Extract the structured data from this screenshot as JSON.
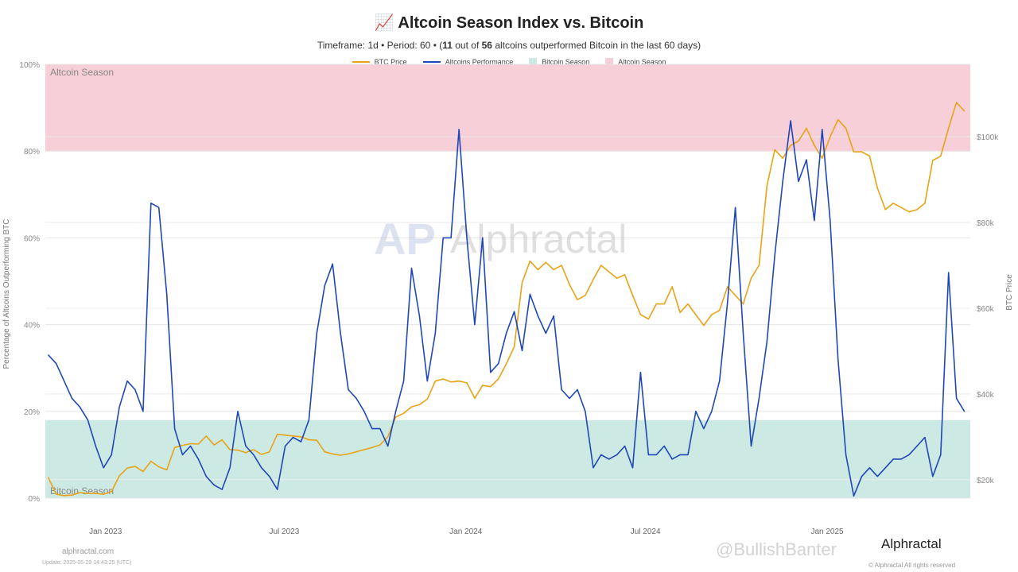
{
  "header": {
    "icon": "chart-increasing-icon",
    "icon_glyph": "📈",
    "title": "Altcoin Season Index vs. Bitcoin",
    "subtitle_prefix": "Timeframe: 1d  •  Period: 60  •  (",
    "count_outperformed": "11",
    "out_of": " out of ",
    "total": "56",
    "subtitle_suffix": " altcoins outperformed Bitcoin in the last 60 days)"
  },
  "footer": {
    "site": "alphractal.com",
    "update": "Update: 2025-05-29 14:43:25 (UTC)",
    "brand": "Alphractal",
    "copyright": "© Alphractal All rights reserved",
    "watermark_overlay": "@BullishBanter",
    "chart_watermark": "Alphractal"
  },
  "chart_data": {
    "type": "line",
    "title": "Altcoin Season Index vs. Bitcoin",
    "ylabel": "Percentage of Altcoins Outperforming BTC",
    "y2label": "BTC Price",
    "ylim": [
      0,
      100
    ],
    "y2lim": [
      15.7,
      116.9
    ],
    "xlim": [
      "2022-11-01",
      "2025-05-26"
    ],
    "grid": true,
    "legend_position": "top",
    "colors": {
      "btc": "#e8a317",
      "alts": "#1f47b8",
      "bitcoin_season": "#cde9e3",
      "altcoin_season": "#f7cfd8"
    },
    "legend": [
      "BTC Price",
      "Altcoins Performance",
      "Bitcoin Season",
      "Altcoin Season"
    ],
    "bands": [
      {
        "name": "Bitcoin Season",
        "from": 0,
        "to": 18,
        "label": "Bitcoin Season"
      },
      {
        "name": "Altcoin Season",
        "from": 80,
        "to": 100,
        "label": "Altcoin Season"
      }
    ],
    "y_ticks": [
      "0%",
      "20%",
      "40%",
      "60%",
      "80%",
      "100%"
    ],
    "y2_ticks": [
      {
        "value": 20,
        "label": "$20k"
      },
      {
        "value": 40,
        "label": "$40k"
      },
      {
        "value": 60,
        "label": "$60k"
      },
      {
        "value": 80,
        "label": "$80k"
      },
      {
        "value": 100,
        "label": "$100k"
      }
    ],
    "x_ticks": [
      {
        "date": "2023-01-01",
        "label": "Jan 2023"
      },
      {
        "date": "2023-07-01",
        "label": "Jul 2023"
      },
      {
        "date": "2024-01-01",
        "label": "Jan 2024"
      },
      {
        "date": "2024-07-01",
        "label": "Jul 2024"
      },
      {
        "date": "2025-01-01",
        "label": "Jan 2025"
      }
    ],
    "x": [
      "2022-11-04",
      "2022-11-12",
      "2022-11-20",
      "2022-11-28",
      "2022-12-06",
      "2022-12-14",
      "2022-12-22",
      "2022-12-30",
      "2023-01-07",
      "2023-01-15",
      "2023-01-23",
      "2023-01-31",
      "2023-02-08",
      "2023-02-16",
      "2023-02-24",
      "2023-03-04",
      "2023-03-12",
      "2023-03-20",
      "2023-03-28",
      "2023-04-05",
      "2023-04-13",
      "2023-04-21",
      "2023-04-29",
      "2023-05-07",
      "2023-05-15",
      "2023-05-23",
      "2023-05-31",
      "2023-06-08",
      "2023-06-16",
      "2023-06-24",
      "2023-07-02",
      "2023-07-10",
      "2023-07-18",
      "2023-07-26",
      "2023-08-03",
      "2023-08-11",
      "2023-08-19",
      "2023-08-27",
      "2023-09-04",
      "2023-09-12",
      "2023-09-20",
      "2023-09-28",
      "2023-10-06",
      "2023-10-14",
      "2023-10-22",
      "2023-10-30",
      "2023-11-07",
      "2023-11-15",
      "2023-11-23",
      "2023-12-01",
      "2023-12-09",
      "2023-12-17",
      "2023-12-25",
      "2024-01-02",
      "2024-01-10",
      "2024-01-18",
      "2024-01-26",
      "2024-02-03",
      "2024-02-11",
      "2024-02-19",
      "2024-02-27",
      "2024-03-06",
      "2024-03-14",
      "2024-03-22",
      "2024-03-30",
      "2024-04-07",
      "2024-04-15",
      "2024-04-23",
      "2024-05-01",
      "2024-05-09",
      "2024-05-17",
      "2024-05-25",
      "2024-06-02",
      "2024-06-10",
      "2024-06-18",
      "2024-06-26",
      "2024-07-04",
      "2024-07-12",
      "2024-07-20",
      "2024-07-28",
      "2024-08-05",
      "2024-08-13",
      "2024-08-21",
      "2024-08-29",
      "2024-09-06",
      "2024-09-14",
      "2024-09-22",
      "2024-09-30",
      "2024-10-08",
      "2024-10-16",
      "2024-10-24",
      "2024-11-01",
      "2024-11-09",
      "2024-11-17",
      "2024-11-25",
      "2024-12-03",
      "2024-12-11",
      "2024-12-19",
      "2024-12-27",
      "2025-01-04",
      "2025-01-12",
      "2025-01-20",
      "2025-01-28",
      "2025-02-05",
      "2025-02-13",
      "2025-02-21",
      "2025-03-01",
      "2025-03-09",
      "2025-03-17",
      "2025-03-25",
      "2025-04-02",
      "2025-04-10",
      "2025-04-18",
      "2025-04-26",
      "2025-05-04",
      "2025-05-12",
      "2025-05-20"
    ],
    "series": [
      {
        "name": "Altcoins Performance",
        "axis": "left",
        "values": [
          33,
          31,
          27,
          23,
          21,
          18,
          12,
          7,
          10,
          21,
          27,
          25,
          20,
          68,
          67,
          47,
          16,
          10,
          12,
          9,
          5,
          3,
          2,
          7,
          20,
          12,
          10,
          7,
          5,
          2,
          12,
          14,
          13,
          18,
          38,
          49,
          54,
          38,
          25,
          23,
          20,
          16,
          16,
          12,
          20,
          27,
          53,
          42,
          27,
          38,
          60,
          60,
          85,
          60,
          40,
          60,
          29,
          31,
          38,
          43,
          34,
          47,
          42,
          38,
          42,
          25,
          23,
          25,
          20,
          7,
          10,
          9,
          10,
          12,
          7,
          29,
          10,
          10,
          12,
          9,
          10,
          10,
          20,
          16,
          20,
          27,
          45,
          67,
          38,
          12,
          23,
          36,
          56,
          73,
          87,
          73,
          78,
          64,
          85,
          64,
          32,
          10,
          0.5,
          5,
          7,
          5,
          7,
          9,
          9,
          10,
          12,
          14,
          5,
          10,
          52,
          23,
          20
        ]
      },
      {
        "name": "BTC Price",
        "axis": "right",
        "unit": "$k",
        "values": [
          20.5,
          16.6,
          16.3,
          16.4,
          17.0,
          16.8,
          16.8,
          16.6,
          17.2,
          20.9,
          22.7,
          23.1,
          21.9,
          24.3,
          23.0,
          22.3,
          27.5,
          28.0,
          28.4,
          28.3,
          30.2,
          28.1,
          29.3,
          27.0,
          26.9,
          26.3,
          27.0,
          25.9,
          26.5,
          30.6,
          30.4,
          30.2,
          30.0,
          29.3,
          29.2,
          26.5,
          26.0,
          25.7,
          26.0,
          26.5,
          27.0,
          27.5,
          28.1,
          30.0,
          34.6,
          35.5,
          37.0,
          37.5,
          38.8,
          43.0,
          43.5,
          42.8,
          43.0,
          42.6,
          39.0,
          42.0,
          41.7,
          43.5,
          47.0,
          51.0,
          66.0,
          71.0,
          69.0,
          70.7,
          69.0,
          70.0,
          65.5,
          62.0,
          63.0,
          66.7,
          70.0,
          68.5,
          67.0,
          67.8,
          63.0,
          58.5,
          57.5,
          61.0,
          61.0,
          65.0,
          59.0,
          61.0,
          58.5,
          56.0,
          58.5,
          59.5,
          65.0,
          63.0,
          61.0,
          67.0,
          70.0,
          88.5,
          97.0,
          95.0,
          98.0,
          99.0,
          102.0,
          98.0,
          95.0,
          100.0,
          104.0,
          102.0,
          96.5,
          96.5,
          95.5,
          88.0,
          83.0,
          84.5,
          83.5,
          82.5,
          83.0,
          84.5,
          94.5,
          95.5,
          102.0,
          108.0,
          106.0
        ]
      }
    ]
  }
}
